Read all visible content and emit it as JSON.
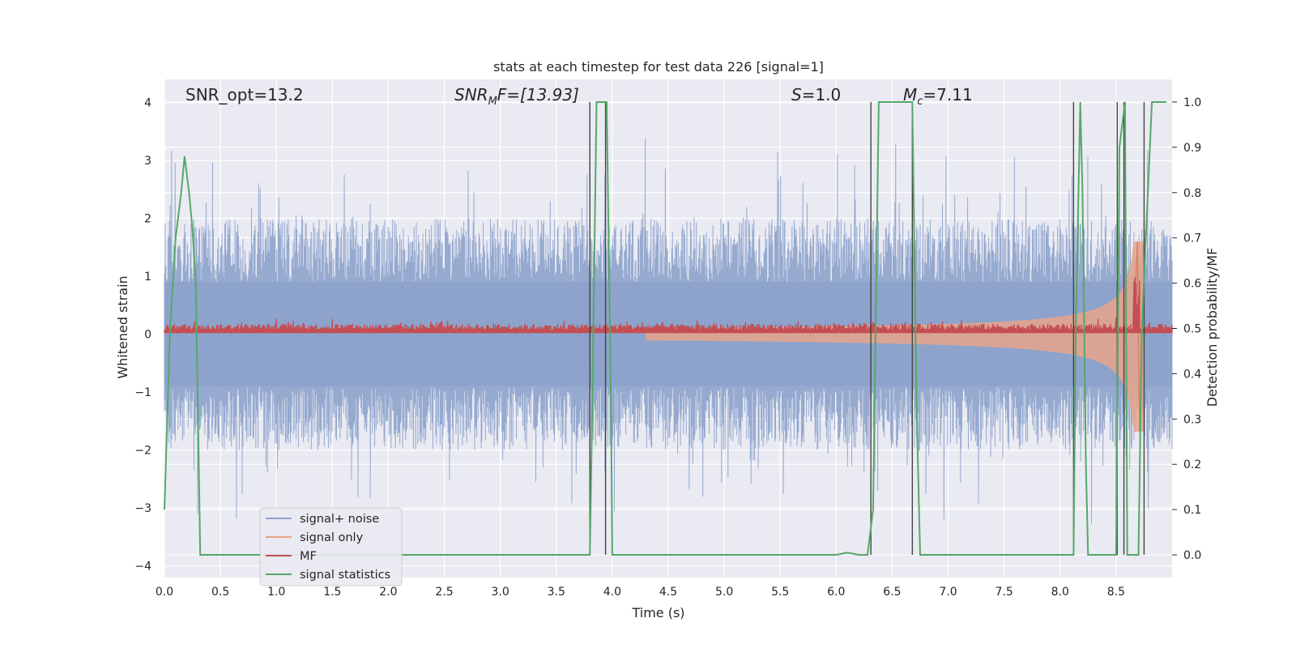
{
  "chart_data": {
    "type": "line",
    "title": "stats at each timestep for test data 226 [signal=1]",
    "xlabel": "Time (s)",
    "ylabel": "Whitened strain",
    "y2label": "Detection probability/MF",
    "xlim": [
      0.0,
      9.0
    ],
    "ylim": [
      -4.2,
      4.4
    ],
    "y2lim": [
      -0.05,
      1.05
    ],
    "xticks": [
      "0.0",
      "0.5",
      "1.0",
      "1.5",
      "2.0",
      "2.5",
      "3.0",
      "3.5",
      "4.0",
      "4.5",
      "5.0",
      "5.5",
      "6.0",
      "6.5",
      "7.0",
      "7.5",
      "8.0",
      "8.5"
    ],
    "yticks": [
      "−4",
      "−3",
      "−2",
      "−1",
      "0",
      "1",
      "2",
      "3",
      "4"
    ],
    "y2ticks": [
      "0.0",
      "0.1",
      "0.2",
      "0.3",
      "0.4",
      "0.5",
      "0.6",
      "0.7",
      "0.8",
      "0.9",
      "1.0"
    ],
    "grid": true,
    "legend_position": "lower-left",
    "annotations": {
      "snr_opt": "SNR_opt=13.2",
      "snr_mf_base": "SNR",
      "snr_mf_sub": "M",
      "snr_mf_rest": "F=[13.93]",
      "s_var": "S",
      "s_val": "=1.0",
      "mc_var": "M",
      "mc_sub": "c",
      "mc_val": "=7.11"
    },
    "series": [
      {
        "name": "signal+ noise",
        "color": "#8da3cc",
        "axis": "left",
        "description": "noise band approx ±1.5 with peaks to ±3.6"
      },
      {
        "name": "signal only",
        "color": "#e8a58a",
        "axis": "left",
        "chirp_end": 8.7,
        "chirp_peak": 1.6
      },
      {
        "name": "MF",
        "color": "#c44e52",
        "axis": "right"
      },
      {
        "name": "signal statistics",
        "color": "#55a868",
        "axis": "right",
        "x": [
          0.0,
          0.05,
          0.1,
          0.15,
          0.18,
          0.22,
          0.25,
          0.28,
          0.3,
          0.32,
          3.8,
          3.82,
          3.86,
          3.9,
          3.95,
          3.99,
          4.0,
          6.0,
          6.1,
          6.2,
          6.28,
          6.33,
          6.38,
          6.42,
          6.55,
          6.68,
          6.72,
          6.75,
          8.12,
          8.14,
          8.18,
          8.2,
          8.23,
          8.25,
          8.5,
          8.53,
          8.58,
          8.6,
          8.7,
          8.73,
          8.82,
          8.88,
          8.95
        ],
        "y": [
          0.1,
          0.5,
          0.7,
          0.8,
          0.88,
          0.8,
          0.72,
          0.6,
          0.3,
          0.0,
          0.0,
          0.3,
          1.0,
          1.0,
          1.0,
          0.3,
          0.0,
          0.0,
          0.005,
          0.0,
          0.0,
          0.1,
          1.0,
          1.0,
          1.0,
          1.0,
          0.3,
          0.0,
          0.0,
          0.5,
          1.0,
          0.8,
          0.2,
          0.0,
          0.0,
          0.9,
          1.0,
          0.0,
          0.0,
          0.5,
          1.0,
          1.0,
          1.0
        ]
      }
    ],
    "vlines": [
      3.8,
      3.94,
      6.31,
      6.68,
      8.12,
      8.51,
      8.57,
      8.75
    ]
  }
}
